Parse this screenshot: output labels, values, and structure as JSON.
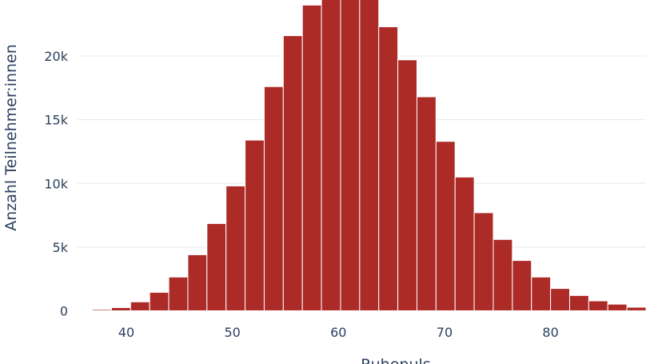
{
  "chart_data": {
    "type": "bar",
    "subtype": "histogram",
    "xlabel": "Ruhepuls",
    "ylabel": "Anzahl Teilnehmer:innen",
    "bin_width": 1.8,
    "bins": [
      {
        "start": 36.8,
        "end": 38.6,
        "count": 100
      },
      {
        "start": 38.6,
        "end": 40.4,
        "count": 250
      },
      {
        "start": 40.4,
        "end": 42.2,
        "count": 700
      },
      {
        "start": 42.2,
        "end": 44.0,
        "count": 1450
      },
      {
        "start": 44.0,
        "end": 45.8,
        "count": 2650
      },
      {
        "start": 45.8,
        "end": 47.6,
        "count": 4400
      },
      {
        "start": 47.6,
        "end": 49.4,
        "count": 6850
      },
      {
        "start": 49.4,
        "end": 51.2,
        "count": 9800
      },
      {
        "start": 51.2,
        "end": 53.0,
        "count": 13400
      },
      {
        "start": 53.0,
        "end": 54.8,
        "count": 17600
      },
      {
        "start": 54.8,
        "end": 56.6,
        "count": 21600
      },
      {
        "start": 56.6,
        "end": 58.4,
        "count": 24000
      },
      {
        "start": 58.4,
        "end": 60.2,
        "count": 25500
      },
      {
        "start": 60.2,
        "end": 62.0,
        "count": 26000
      },
      {
        "start": 62.0,
        "end": 63.8,
        "count": 25000
      },
      {
        "start": 63.8,
        "end": 65.6,
        "count": 22300
      },
      {
        "start": 65.6,
        "end": 67.4,
        "count": 19700
      },
      {
        "start": 67.4,
        "end": 69.2,
        "count": 16800
      },
      {
        "start": 69.2,
        "end": 71.0,
        "count": 13300
      },
      {
        "start": 71.0,
        "end": 72.8,
        "count": 10500
      },
      {
        "start": 72.8,
        "end": 74.6,
        "count": 7700
      },
      {
        "start": 74.6,
        "end": 76.4,
        "count": 5600
      },
      {
        "start": 76.4,
        "end": 78.2,
        "count": 3950
      },
      {
        "start": 78.2,
        "end": 80.0,
        "count": 2650
      },
      {
        "start": 80.0,
        "end": 81.8,
        "count": 1750
      },
      {
        "start": 81.8,
        "end": 83.6,
        "count": 1200
      },
      {
        "start": 83.6,
        "end": 85.4,
        "count": 780
      },
      {
        "start": 85.4,
        "end": 87.2,
        "count": 520
      },
      {
        "start": 87.2,
        "end": 89.0,
        "count": 280
      }
    ],
    "xlim": [
      35.4,
      89.0
    ],
    "ylim": [
      -850,
      24400
    ],
    "x_ticks": [
      {
        "value": 40,
        "label": "40"
      },
      {
        "value": 50,
        "label": "50"
      },
      {
        "value": 60,
        "label": "60"
      },
      {
        "value": 70,
        "label": "70"
      },
      {
        "value": 80,
        "label": "80"
      }
    ],
    "y_ticks": [
      {
        "value": 0,
        "label": "0"
      },
      {
        "value": 5000,
        "label": "5k"
      },
      {
        "value": 10000,
        "label": "10k"
      },
      {
        "value": 15000,
        "label": "15k"
      },
      {
        "value": 20000,
        "label": "20k"
      }
    ],
    "grid": true,
    "bar_color": "#ac2b27",
    "bar_outline_color": "#ffffff",
    "grid_color": "#e5e8ee",
    "text_color": "#2a3f5f"
  }
}
